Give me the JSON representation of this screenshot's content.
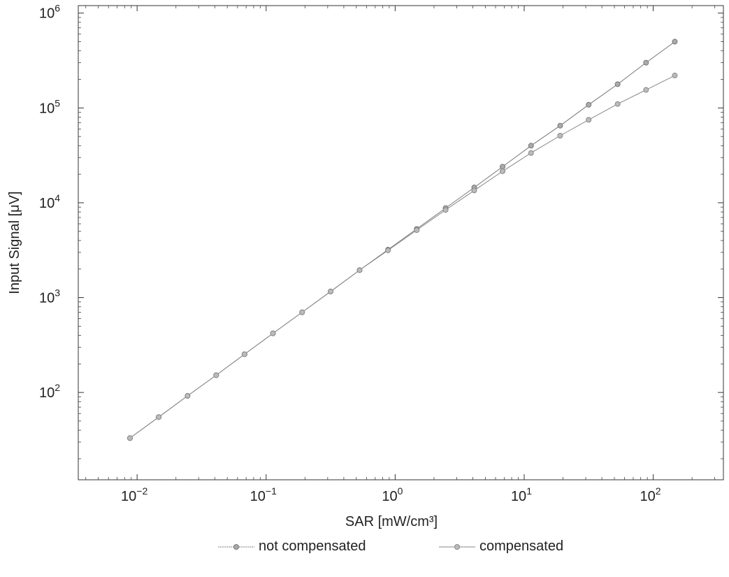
{
  "chart_data": {
    "type": "line",
    "xlabel": "SAR [mW/cm³]",
    "ylabel": "Input Signal [μV]",
    "x_scale": "log",
    "y_scale": "log",
    "xlim": [
      0.0035,
      350
    ],
    "ylim": [
      12,
      1200000
    ],
    "x_ticks": [
      {
        "base": "10",
        "exp": "−2"
      },
      {
        "base": "10",
        "exp": "−1"
      },
      {
        "base": "10",
        "exp": "0"
      },
      {
        "base": "10",
        "exp": "1"
      },
      {
        "base": "10",
        "exp": "2"
      }
    ],
    "y_ticks": [
      {
        "base": "10",
        "exp": "2"
      },
      {
        "base": "10",
        "exp": "3"
      },
      {
        "base": "10",
        "exp": "4"
      },
      {
        "base": "10",
        "exp": "5"
      },
      {
        "base": "10",
        "exp": "6"
      }
    ],
    "grid": false,
    "legend_position": "bottom",
    "series": [
      {
        "name": "not compensated",
        "color": "#777777",
        "marker": "circle",
        "x": [
          0.0088,
          0.0147,
          0.0246,
          0.041,
          0.068,
          0.113,
          0.19,
          0.316,
          0.53,
          0.88,
          1.47,
          2.46,
          4.1,
          6.8,
          11.3,
          19.0,
          31.6,
          53,
          88,
          147
        ],
        "y": [
          33,
          55,
          92,
          152,
          253,
          420,
          700,
          1160,
          1950,
          3200,
          5300,
          8800,
          14500,
          24000,
          40000,
          65000,
          108000,
          178000,
          300000,
          500000
        ]
      },
      {
        "name": "compensated",
        "color": "#888888",
        "marker": "circle",
        "x": [
          0.0088,
          0.0147,
          0.0246,
          0.041,
          0.068,
          0.113,
          0.19,
          0.316,
          0.53,
          0.88,
          1.47,
          2.46,
          4.1,
          6.8,
          11.3,
          19.0,
          31.6,
          53,
          88,
          147
        ],
        "y": [
          33,
          55,
          92,
          152,
          253,
          420,
          700,
          1160,
          1950,
          3150,
          5150,
          8400,
          13500,
          21500,
          33500,
          51000,
          75000,
          110000,
          155000,
          220000
        ]
      }
    ]
  }
}
